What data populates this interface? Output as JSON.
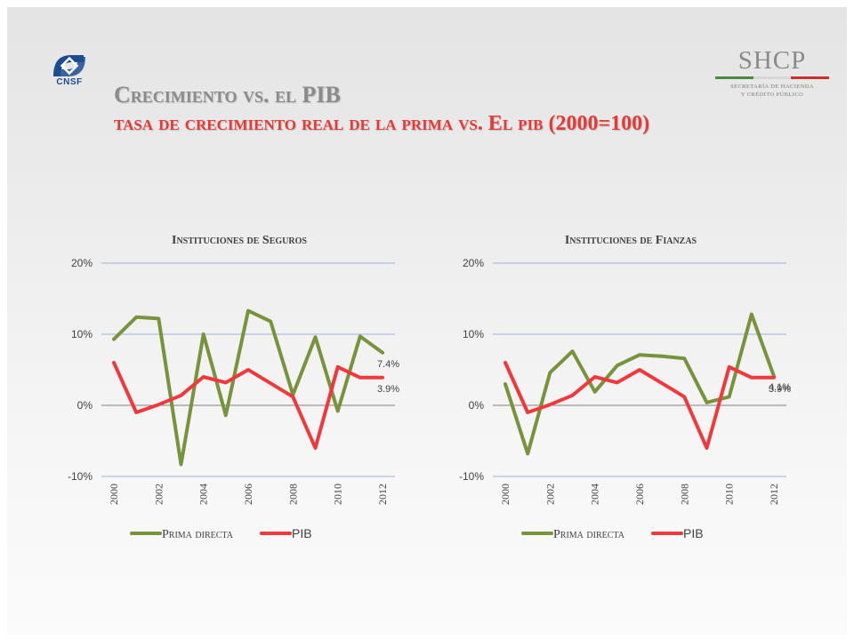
{
  "logos": {
    "cnsf_text": "CNSF",
    "shcp_name": "SHCP",
    "shcp_line1": "SECRETARÍA DE HACIENDA",
    "shcp_line2": "Y CRÉDITO PÚBLICO"
  },
  "header": {
    "title": "Crecimiento vs. el PIB",
    "subtitle": "tasa de crecimiento real de la prima vs. El pib (2000=100)"
  },
  "colors": {
    "prima": "#77933c",
    "pib": "#f0393c",
    "gridline": "#9db5d6",
    "axis_text": "#404040",
    "cnsf_blue": "#1d4b8f",
    "shcp_green": "#4a8a3e",
    "shcp_red": "#c8312c"
  },
  "chart_data": [
    {
      "type": "line",
      "title": "Instituciones de Seguros",
      "x": [
        2000,
        2001,
        2002,
        2003,
        2004,
        2005,
        2006,
        2007,
        2008,
        2009,
        2010,
        2011,
        2012
      ],
      "x_tick_labels": [
        "2000",
        "2002",
        "2004",
        "2006",
        "2008",
        "2010",
        "2012"
      ],
      "y_tick_labels": [
        "20%",
        "10%",
        "0%",
        "-10%"
      ],
      "ylim": [
        -10,
        20
      ],
      "y_unit": "%",
      "grid": true,
      "legend_position": "bottom",
      "series": [
        {
          "name": "Prima directa",
          "color_key": "prima",
          "values": [
            9.3,
            12.4,
            12.2,
            -8.3,
            10.0,
            -1.4,
            13.3,
            11.8,
            1.5,
            9.6,
            -0.8,
            9.7,
            7.4
          ],
          "end_label": "7.4%"
        },
        {
          "name": "PIB",
          "color_key": "pib",
          "values": [
            6.0,
            -1.0,
            0.1,
            1.4,
            4.0,
            3.2,
            5.0,
            3.1,
            1.2,
            -6.0,
            5.4,
            3.9,
            3.9
          ],
          "end_label": "3.9%"
        }
      ]
    },
    {
      "type": "line",
      "title": "Instituciones de Fianzas",
      "x": [
        2000,
        2001,
        2002,
        2003,
        2004,
        2005,
        2006,
        2007,
        2008,
        2009,
        2010,
        2011,
        2012
      ],
      "x_tick_labels": [
        "2000",
        "2002",
        "2004",
        "2006",
        "2008",
        "2010",
        "2012"
      ],
      "y_tick_labels": [
        "20%",
        "10%",
        "0%",
        "-10%"
      ],
      "ylim": [
        -10,
        20
      ],
      "y_unit": "%",
      "grid": true,
      "legend_position": "bottom",
      "series": [
        {
          "name": "Prima directa",
          "color_key": "prima",
          "values": [
            3.0,
            -6.8,
            4.6,
            7.6,
            1.9,
            5.6,
            7.1,
            6.9,
            6.6,
            0.4,
            1.2,
            12.8,
            4.1
          ],
          "end_label": "4.1%"
        },
        {
          "name": "PIB",
          "color_key": "pib",
          "values": [
            6.0,
            -1.0,
            0.1,
            1.4,
            4.0,
            3.2,
            5.0,
            3.1,
            1.2,
            -6.0,
            5.4,
            3.9,
            3.9
          ],
          "end_label": "3.9%"
        }
      ]
    }
  ]
}
